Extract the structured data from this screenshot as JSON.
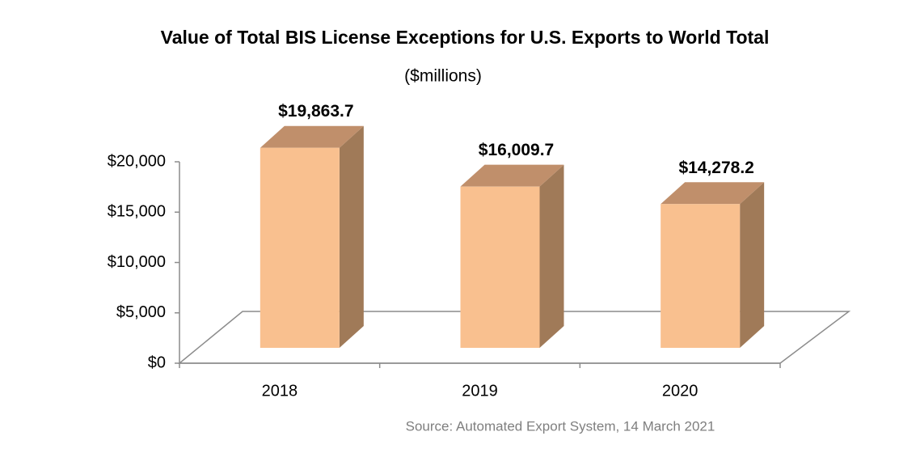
{
  "chart_data": {
    "type": "bar3d",
    "title": "Value of Total BIS License Exceptions for U.S. Exports to World Total",
    "subtitle": "($millions)",
    "source": "Source: Automated Export System, 14 March 2021",
    "categories": [
      "2018",
      "2019",
      "2020"
    ],
    "values": [
      19863.7,
      16009.7,
      14278.2
    ],
    "value_labels": [
      "$19,863.7",
      "$16,009.7",
      "$14,278.2"
    ],
    "color": "#f9c08f",
    "ylim": [
      0,
      20000
    ],
    "yticks": [
      {
        "value": 0,
        "label": "$0"
      },
      {
        "value": 5000,
        "label": "$5,000"
      },
      {
        "value": 10000,
        "label": "$10,000"
      },
      {
        "value": 15000,
        "label": "$15,000"
      },
      {
        "value": 20000,
        "label": "$20,000"
      }
    ],
    "grid": false
  }
}
